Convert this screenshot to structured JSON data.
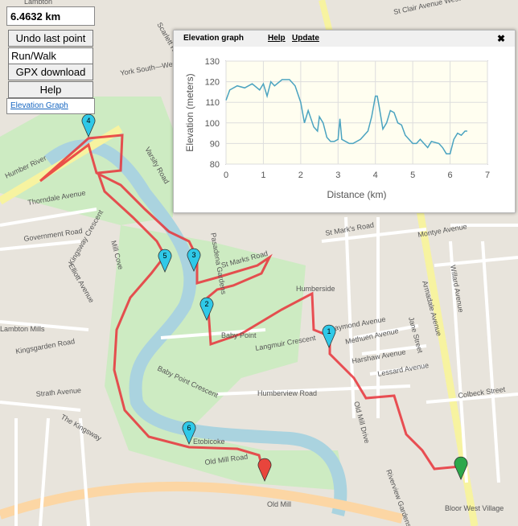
{
  "controls": {
    "distance": "6.4632 km",
    "undo": "Undo last point",
    "mode": "Run/Walk",
    "gpx": "GPX download",
    "help": "Help",
    "elevation_link": "Elevation Graph"
  },
  "panel": {
    "title": "Elevation graph",
    "help": "Help",
    "update": "Update",
    "close": "✖"
  },
  "chart_data": {
    "type": "line",
    "xlabel": "Distance (km)",
    "ylabel": "Elevation (meters)",
    "xlim": [
      0,
      7
    ],
    "ylim": [
      80,
      130
    ],
    "xticks": [
      0,
      1,
      2,
      3,
      4,
      5,
      6,
      7
    ],
    "yticks": [
      80,
      90,
      100,
      110,
      120,
      130
    ],
    "grid": true,
    "x": [
      0,
      0.1,
      0.3,
      0.5,
      0.7,
      0.9,
      1.0,
      1.1,
      1.2,
      1.3,
      1.5,
      1.7,
      1.85,
      2.0,
      2.1,
      2.2,
      2.35,
      2.45,
      2.5,
      2.6,
      2.7,
      2.8,
      2.9,
      3.0,
      3.05,
      3.1,
      3.2,
      3.3,
      3.4,
      3.6,
      3.8,
      3.9,
      4.0,
      4.05,
      4.1,
      4.2,
      4.3,
      4.4,
      4.5,
      4.6,
      4.7,
      4.8,
      4.9,
      5.0,
      5.1,
      5.2,
      5.3,
      5.4,
      5.5,
      5.7,
      5.8,
      5.9,
      6.0,
      6.1,
      6.2,
      6.3,
      6.4,
      6.46
    ],
    "series": [
      {
        "name": "Elevation",
        "color": "#4aa3c0",
        "values": [
          111,
          116,
          118,
          117,
          119,
          116,
          119,
          113,
          120,
          118,
          121,
          121,
          118,
          110,
          100,
          106,
          98,
          96,
          103,
          100,
          93,
          91,
          91,
          92,
          102,
          92,
          91,
          90,
          90,
          92,
          96,
          103,
          113,
          113,
          108,
          97,
          100,
          106,
          105,
          100,
          99,
          94,
          92,
          90,
          90,
          92,
          90,
          88,
          91,
          90,
          88,
          85,
          85,
          92,
          95,
          94,
          96,
          96
        ]
      }
    ]
  },
  "map": {
    "labels": [
      "Lambton",
      "Scarlett Road",
      "St Clair Avenue West",
      "York South—Weston",
      "Varsity Road",
      "Pasadena Gardens",
      "Thorndale Avenue",
      "Government Road",
      "Kingsway Crescent",
      "Elliott Avenue",
      "Mill Cove",
      "Humber River",
      "St Mark's Road",
      "St Marks Road",
      "Humberside",
      "Baby Point",
      "Raymond Avenue",
      "Methuen Avenue",
      "Harshaw Avenue",
      "Lessard Avenue",
      "Humberview Road",
      "Langmuir Crescent",
      "Baby Point Crescent",
      "Kingsgarden Road",
      "Strath Avenue",
      "The Kingsway",
      "Old Mill Road",
      "Old Mill",
      "Etobicoke",
      "Jane Street",
      "Montye Avenue",
      "Colbeck Street",
      "Bloor West Village",
      "Lambton Mills",
      "Riverview Gardens",
      "Old Mill Drive",
      "Armadale Avenue",
      "Willard Avenue"
    ],
    "markers": [
      "1",
      "2",
      "3",
      "4",
      "5",
      "6"
    ]
  }
}
